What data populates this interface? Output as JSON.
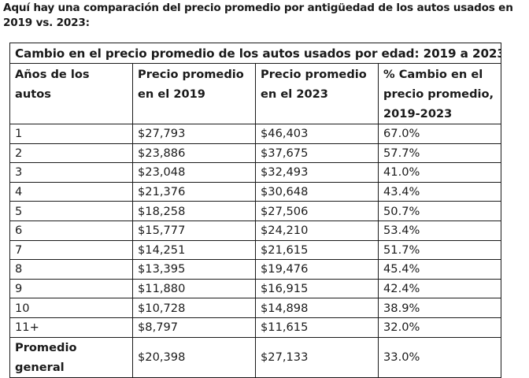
{
  "intro": "Aquí hay una comparación del precio promedio por antigüedad de los autos usados en 2019 vs. 2023:",
  "table": {
    "title": "Cambio en el precio promedio de los autos usados por edad: 2019 a 2023",
    "headers": [
      "Años de los autos",
      "Precio promedio en el 2019",
      "Precio promedio en el 2023",
      "% Cambio en el precio promedio, 2019-2023"
    ],
    "rows": [
      [
        "1",
        "$27,793",
        "$46,403",
        "67.0%"
      ],
      [
        "2",
        "$23,886",
        "$37,675",
        "57.7%"
      ],
      [
        "3",
        "$23,048",
        "$32,493",
        "41.0%"
      ],
      [
        "4",
        "$21,376",
        "$30,648",
        "43.4%"
      ],
      [
        "5",
        "$18,258",
        "$27,506",
        "50.7%"
      ],
      [
        "6",
        "$15,777",
        "$24,210",
        "53.4%"
      ],
      [
        "7",
        "$14,251",
        "$21,615",
        "51.7%"
      ],
      [
        "8",
        "$13,395",
        "$19,476",
        "45.4%"
      ],
      [
        "9",
        "$11,880",
        "$16,915",
        "42.4%"
      ],
      [
        "10",
        "$10,728",
        "$14,898",
        "38.9%"
      ],
      [
        "11+",
        "$8,797",
        "$11,615",
        "32.0%"
      ]
    ],
    "footer": [
      "Promedio general",
      "$20,398",
      "$27,133",
      "33.0%"
    ]
  }
}
